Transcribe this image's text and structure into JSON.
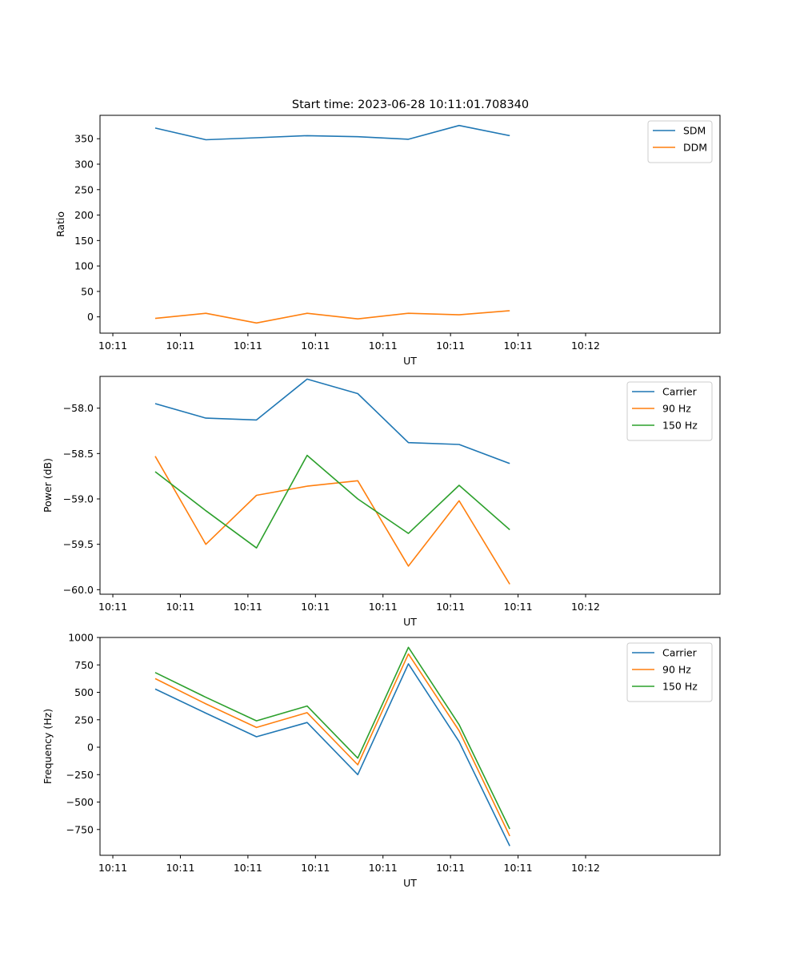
{
  "figure": {
    "title": "Start time: 2023-06-28 10:11:01.708340"
  },
  "chart_data": [
    {
      "type": "line",
      "title": "Start time: 2023-06-28 10:11:01.708340",
      "xlabel": "UT",
      "ylabel": "Ratio",
      "x_tick_labels": [
        "10:11",
        "10:11",
        "10:11",
        "10:11",
        "10:11",
        "10:11",
        "10:11",
        "10:12"
      ],
      "y_ticks": [
        0,
        50,
        100,
        150,
        200,
        250,
        300,
        350
      ],
      "ylim": [
        -32,
        396
      ],
      "grid": false,
      "legend_position": "top-right",
      "series": [
        {
          "name": "SDM",
          "color": "#1f77b4",
          "values": [
            371,
            348,
            352,
            356,
            354,
            349,
            376,
            356
          ]
        },
        {
          "name": "DDM",
          "color": "#ff7f0e",
          "values": [
            -3,
            7,
            -12,
            7,
            -4,
            7,
            4,
            12
          ]
        }
      ]
    },
    {
      "type": "line",
      "title": "",
      "xlabel": "UT",
      "ylabel": "Power (dB)",
      "x_tick_labels": [
        "10:11",
        "10:11",
        "10:11",
        "10:11",
        "10:11",
        "10:11",
        "10:11",
        "10:12"
      ],
      "y_ticks": [
        -58.0,
        -58.5,
        -59.0,
        -59.5,
        -60.0
      ],
      "y_tick_labels": [
        "−58.0",
        "−58.5",
        "−59.0",
        "−59.5",
        "−60.0"
      ],
      "ylim": [
        -60.05,
        -57.65
      ],
      "grid": false,
      "legend_position": "top-right",
      "series": [
        {
          "name": "Carrier",
          "color": "#1f77b4",
          "values": [
            -57.95,
            -58.11,
            -58.13,
            -57.68,
            -57.84,
            -58.38,
            -58.4,
            -58.61
          ]
        },
        {
          "name": "90 Hz",
          "color": "#ff7f0e",
          "values": [
            -58.53,
            -59.5,
            -58.96,
            -58.86,
            -58.8,
            -59.74,
            -59.02,
            -59.94
          ]
        },
        {
          "name": "150 Hz",
          "color": "#2ca02c",
          "values": [
            -58.7,
            -59.13,
            -59.54,
            -58.52,
            -59.0,
            -59.38,
            -58.85,
            -59.34
          ]
        }
      ]
    },
    {
      "type": "line",
      "title": "",
      "xlabel": "UT",
      "ylabel": "Frequency (Hz)",
      "x_tick_labels": [
        "10:11",
        "10:11",
        "10:11",
        "10:11",
        "10:11",
        "10:11",
        "10:11",
        "10:12"
      ],
      "y_ticks": [
        -750,
        -500,
        -250,
        0,
        250,
        500,
        750,
        1000
      ],
      "y_tick_labels": [
        "−750",
        "−500",
        "−250",
        "0",
        "250",
        "500",
        "750",
        "1000"
      ],
      "ylim": [
        -985,
        1000
      ],
      "grid": false,
      "legend_position": "top-right",
      "series": [
        {
          "name": "Carrier",
          "color": "#1f77b4",
          "values": [
            530,
            310,
            95,
            225,
            -250,
            760,
            50,
            -900
          ]
        },
        {
          "name": "90 Hz",
          "color": "#ff7f0e",
          "values": [
            625,
            395,
            180,
            315,
            -160,
            850,
            150,
            -810
          ]
        },
        {
          "name": "150 Hz",
          "color": "#2ca02c",
          "values": [
            680,
            455,
            240,
            375,
            -100,
            910,
            205,
            -745
          ]
        }
      ]
    }
  ]
}
